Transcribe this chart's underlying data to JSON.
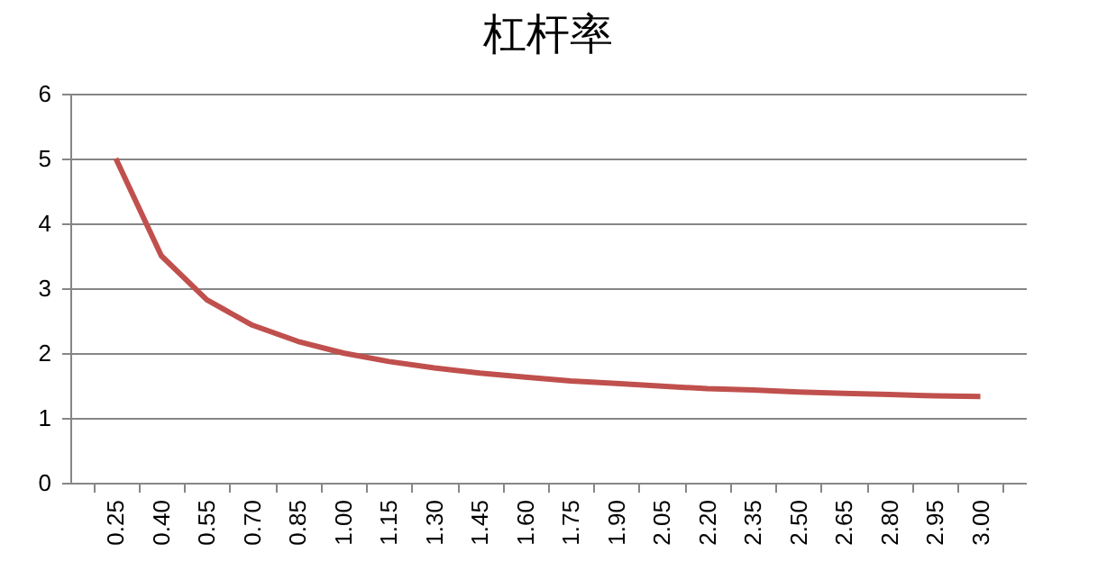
{
  "chart_data": {
    "type": "line",
    "title": "杠杆率",
    "categories": [
      "0.25",
      "0.40",
      "0.55",
      "0.70",
      "0.85",
      "1.00",
      "1.15",
      "1.30",
      "1.45",
      "1.60",
      "1.75",
      "1.90",
      "2.05",
      "2.20",
      "2.35",
      "2.50",
      "2.65",
      "2.80",
      "2.95",
      "3.00"
    ],
    "series": [
      {
        "color": "#c0504d",
        "values": [
          5,
          3.5,
          2.82,
          2.43,
          2.18,
          2,
          1.87,
          1.77,
          1.69,
          1.63,
          1.57,
          1.53,
          1.49,
          1.45,
          1.43,
          1.4,
          1.38,
          1.36,
          1.34,
          1.33
        ]
      }
    ],
    "ylim": [
      0,
      6
    ],
    "yticks": [
      0,
      1,
      2,
      3,
      4,
      5,
      6
    ],
    "grid": "y",
    "legend": false,
    "marker": "none",
    "line_style": "solid"
  }
}
